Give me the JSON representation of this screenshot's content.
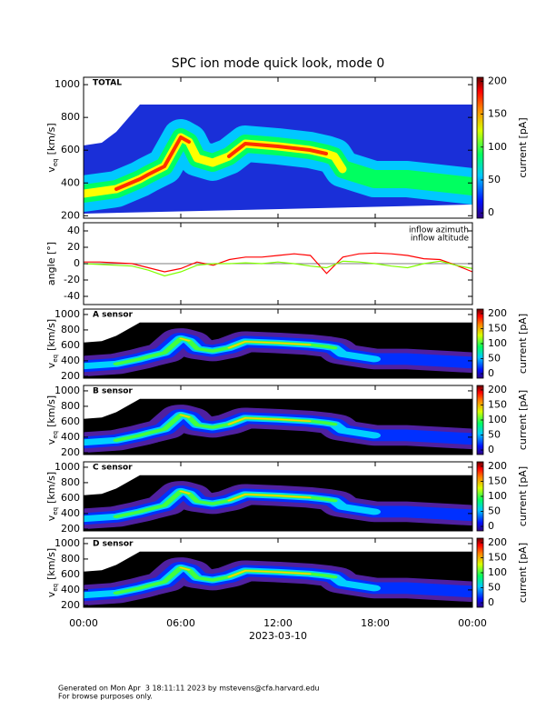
{
  "chart_data": [
    {
      "type": "heatmap",
      "title": "SPC ion mode quick look, mode 0",
      "label": "TOTAL",
      "ylabel": [
        "v",
        "eq",
        "[km/s]"
      ],
      "ylim": [
        185,
        1045
      ],
      "yticks": [
        200,
        400,
        600,
        800,
        1000
      ],
      "colorbar": {
        "label": "current [pA]",
        "lim": [
          -8,
          206
        ],
        "ticks": [
          0,
          50,
          100,
          150,
          200
        ]
      }
    },
    {
      "type": "line",
      "ylabel": "angle [°]",
      "x": [
        0,
        1,
        2,
        3,
        4,
        5,
        6,
        7,
        8,
        9,
        10,
        11,
        12,
        13,
        14,
        15,
        16,
        17,
        18,
        19,
        20,
        21,
        22,
        23,
        24
      ],
      "xlim": [
        0,
        24
      ],
      "ylim": [
        -50,
        50
      ],
      "yticks": [
        -40,
        -20,
        0,
        20,
        40
      ],
      "series": [
        {
          "name": "inflow azimuth",
          "color": "#ff0000",
          "values": [
            2,
            2,
            1,
            0,
            -5,
            -10,
            -6,
            2,
            -2,
            5,
            8,
            8,
            10,
            12,
            10,
            -12,
            8,
            12,
            13,
            12,
            10,
            6,
            5,
            -2,
            -10
          ]
        },
        {
          "name": "inflow altitude",
          "color": "#80ff00",
          "values": [
            0,
            -1,
            -2,
            -3,
            -8,
            -15,
            -10,
            -2,
            0,
            0,
            1,
            0,
            2,
            0,
            -3,
            -5,
            3,
            2,
            0,
            -3,
            -5,
            0,
            3,
            -2,
            -6
          ]
        }
      ]
    },
    {
      "type": "heatmap",
      "label": "A sensor",
      "ylabel": [
        "v",
        "eq",
        "[km/s]"
      ],
      "ylim": [
        175,
        1070
      ],
      "yticks": [
        200,
        400,
        600,
        800,
        1000
      ],
      "colorbar": {
        "label": "current [pA]",
        "lim": [
          -15,
          215
        ],
        "ticks": [
          0,
          50,
          100,
          150,
          200
        ]
      }
    },
    {
      "type": "heatmap",
      "label": "B sensor",
      "ylabel": [
        "v",
        "eq",
        "[km/s]"
      ],
      "ylim": [
        175,
        1070
      ],
      "yticks": [
        200,
        400,
        600,
        800,
        1000
      ],
      "colorbar": {
        "label": "current [pA]",
        "lim": [
          -15,
          215
        ],
        "ticks": [
          0,
          50,
          100,
          150,
          200
        ]
      }
    },
    {
      "type": "heatmap",
      "label": "C sensor",
      "ylabel": [
        "v",
        "eq",
        "[km/s]"
      ],
      "ylim": [
        175,
        1070
      ],
      "yticks": [
        200,
        400,
        600,
        800,
        1000
      ],
      "colorbar": {
        "label": "current [pA]",
        "lim": [
          -15,
          215
        ],
        "ticks": [
          0,
          50,
          100,
          150,
          200
        ]
      }
    },
    {
      "type": "heatmap",
      "label": "D sensor",
      "ylabel": [
        "v",
        "eq",
        "[km/s]"
      ],
      "ylim": [
        175,
        1070
      ],
      "yticks": [
        200,
        400,
        600,
        800,
        1000
      ],
      "colorbar": {
        "label": "current [pA]",
        "lim": [
          -15,
          215
        ],
        "ticks": [
          0,
          50,
          100,
          150,
          200
        ]
      },
      "xlim": [
        0,
        24
      ],
      "xlabel": "2023-03-10",
      "xticks": [
        {
          "value": 0,
          "label": "00:00"
        },
        {
          "value": 6,
          "label": "06:00"
        },
        {
          "value": 12,
          "label": "12:00"
        },
        {
          "value": 18,
          "label": "18:00"
        },
        {
          "value": 24,
          "label": "00:00"
        }
      ]
    }
  ],
  "footer": [
    "Generated on Mon Apr  3 18:11:11 2023 by mstevens@cfa.harvard.edu",
    "For browse purposes only."
  ]
}
